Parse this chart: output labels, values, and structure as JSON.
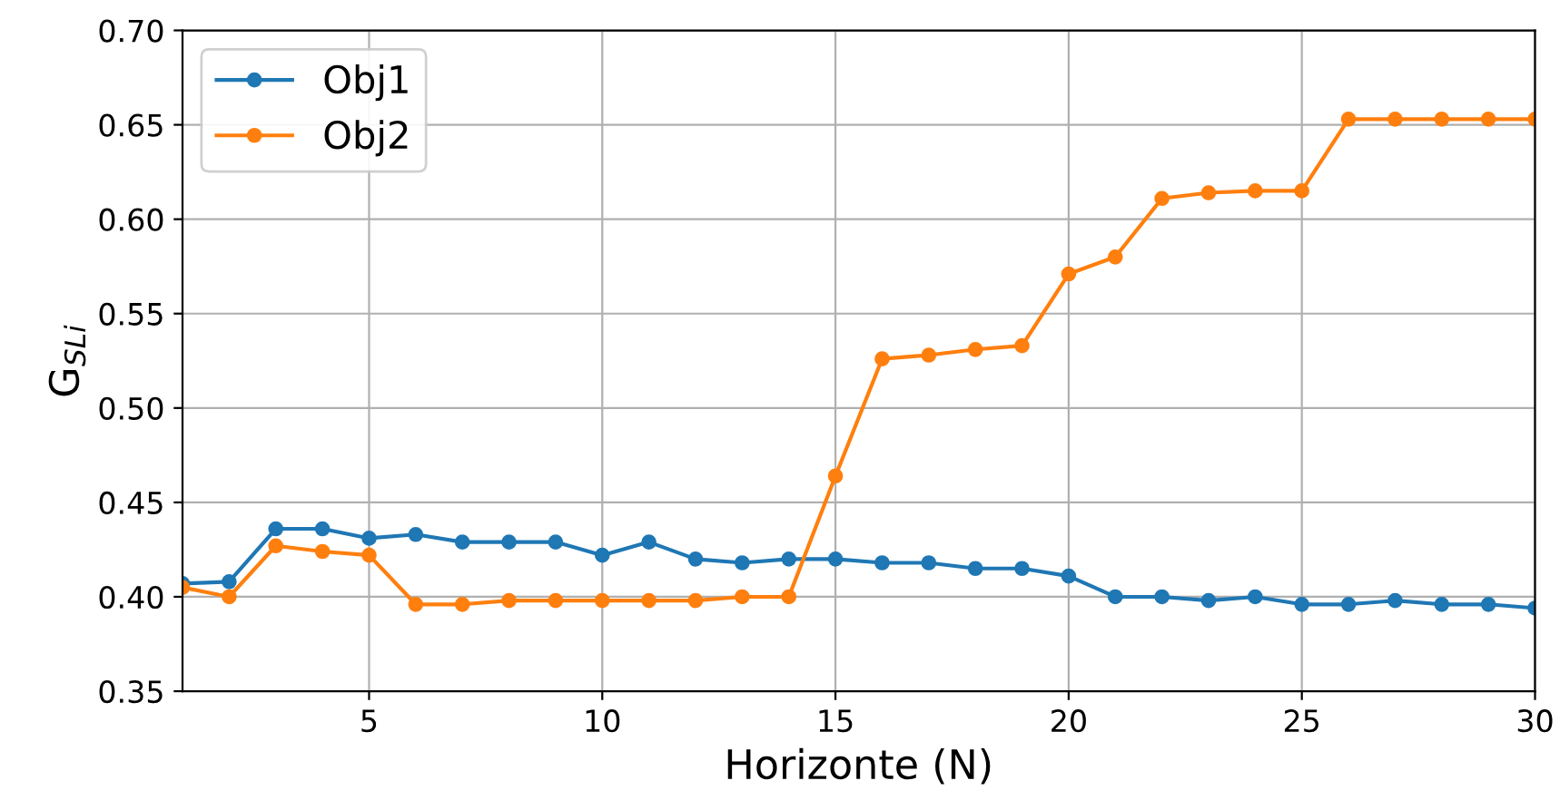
{
  "chart_data": {
    "type": "line",
    "xlabel": "Horizonte (N)",
    "ylabel": "G$_{SLi}$",
    "x": [
      1,
      2,
      3,
      4,
      5,
      6,
      7,
      8,
      9,
      10,
      11,
      12,
      13,
      14,
      15,
      16,
      17,
      18,
      19,
      20,
      21,
      22,
      23,
      24,
      25,
      26,
      27,
      28,
      29,
      30
    ],
    "series": [
      {
        "name": "Obj1",
        "color": "#1f77b4",
        "values": [
          0.407,
          0.408,
          0.436,
          0.436,
          0.431,
          0.433,
          0.429,
          0.429,
          0.429,
          0.422,
          0.429,
          0.42,
          0.418,
          0.42,
          0.42,
          0.418,
          0.418,
          0.415,
          0.415,
          0.411,
          0.4,
          0.4,
          0.398,
          0.4,
          0.396,
          0.396,
          0.398,
          0.396,
          0.396,
          0.394
        ]
      },
      {
        "name": "Obj2",
        "color": "#ff7f0e",
        "values": [
          0.405,
          0.4,
          0.427,
          0.424,
          0.422,
          0.396,
          0.396,
          0.398,
          0.398,
          0.398,
          0.398,
          0.398,
          0.4,
          0.4,
          0.464,
          0.526,
          0.528,
          0.531,
          0.533,
          0.571,
          0.58,
          0.611,
          0.614,
          0.615,
          0.615,
          0.653,
          0.653,
          0.653,
          0.653,
          0.653
        ]
      }
    ],
    "xlim": [
      1,
      30
    ],
    "xticks": [
      5,
      10,
      15,
      20,
      25,
      30
    ],
    "ylim": [
      0.35,
      0.7
    ],
    "yticks": [
      {
        "value": 0.35,
        "label": "0.35"
      },
      {
        "value": 0.4,
        "label": "0.40"
      },
      {
        "value": 0.45,
        "label": "0.45"
      },
      {
        "value": 0.5,
        "label": "0.50"
      },
      {
        "value": 0.55,
        "label": "0.55"
      },
      {
        "value": 0.6,
        "label": "0.60"
      },
      {
        "value": 0.65,
        "label": "0.65"
      },
      {
        "value": 0.7,
        "label": "0.70"
      }
    ],
    "grid": true,
    "legend": "upper left",
    "marker": "circle",
    "line_style": "solid"
  }
}
